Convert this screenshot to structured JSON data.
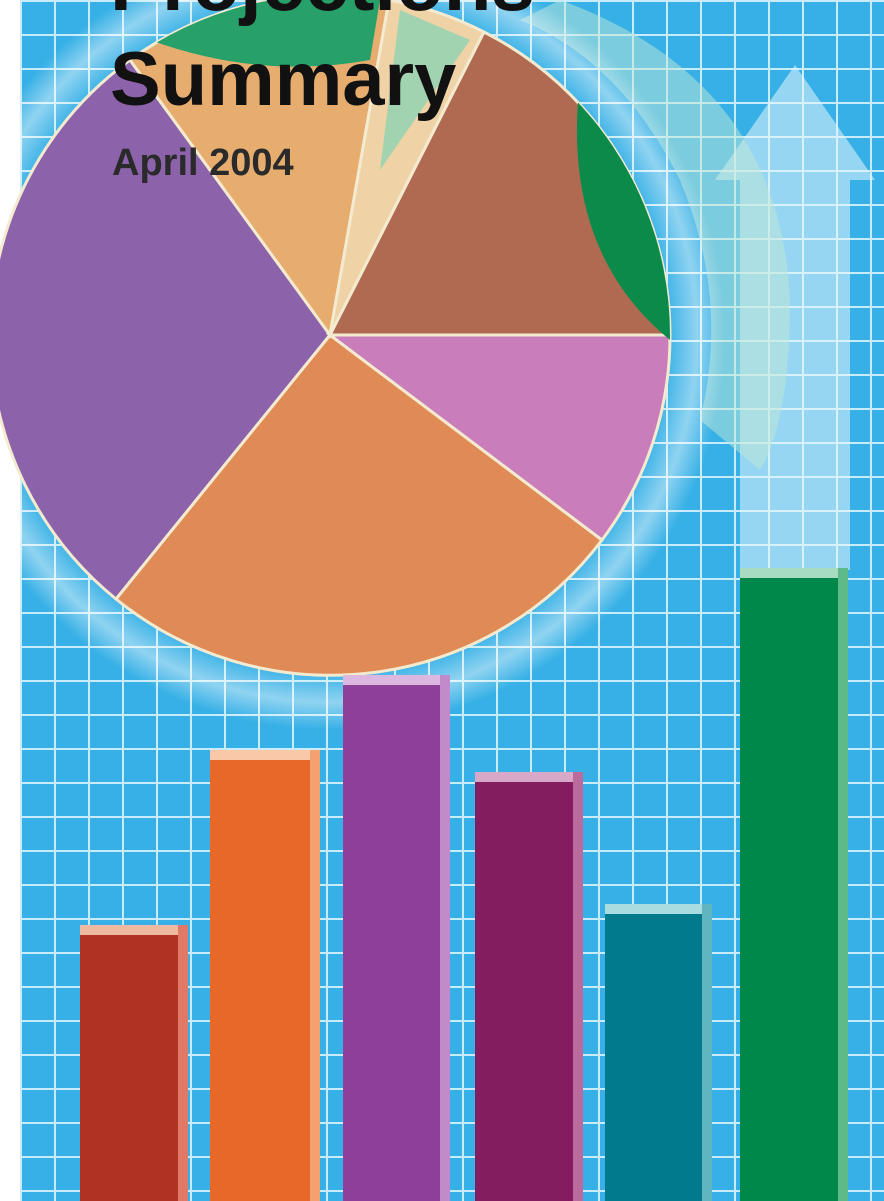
{
  "cover": {
    "title_line_1": "Projections",
    "title_line_2": "Summary",
    "date": "April 2004"
  }
}
